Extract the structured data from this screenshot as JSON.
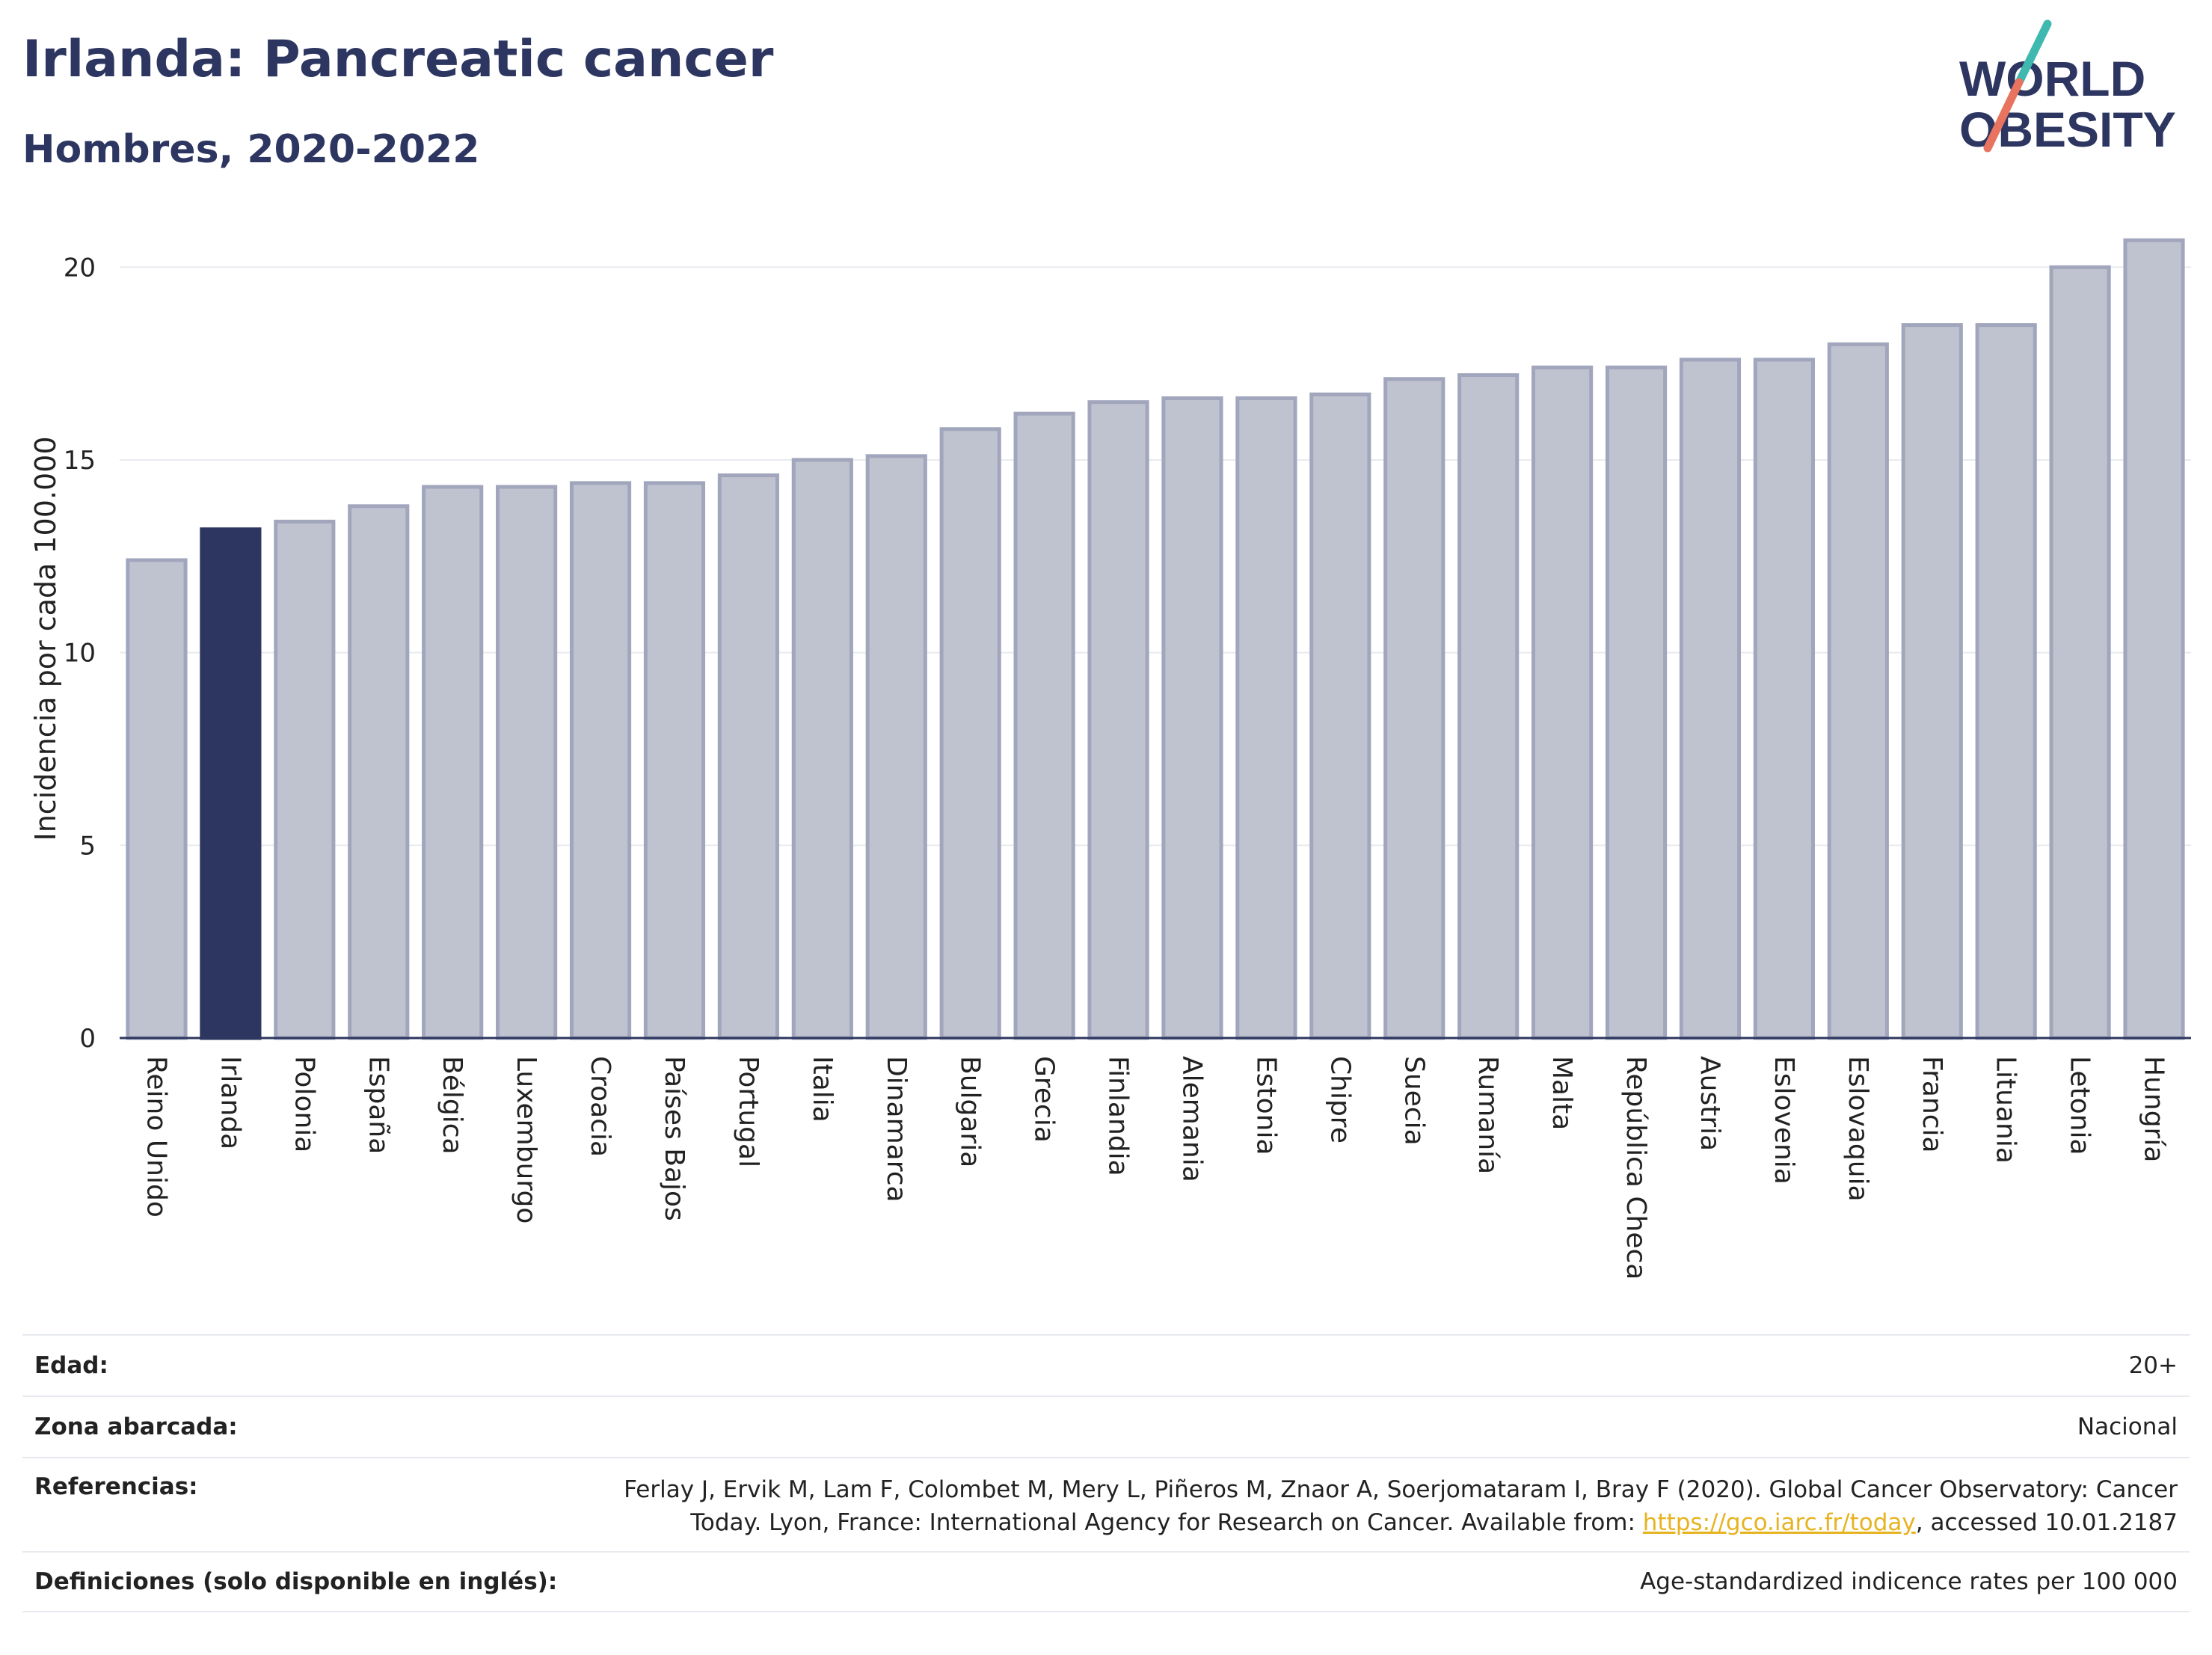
{
  "header": {
    "title": "Irlanda: Pancreatic cancer",
    "subtitle": "Hombres, 2020-2022"
  },
  "logo": {
    "line1": "WORLD",
    "line2": "OBESITY",
    "colors": {
      "text": "#2d3660",
      "slash_teal": "#3fb8b0",
      "slash_red": "#e8745f"
    }
  },
  "chart_data": {
    "type": "bar",
    "ylabel": "Incidencia por cada 100.000",
    "ylim": [
      0,
      21.5
    ],
    "yticks": [
      0,
      5,
      10,
      15,
      20
    ],
    "grid": true,
    "highlight": "Irlanda",
    "colors": {
      "bar": "#bfc3d0",
      "bar_stroke": "#a1a6bc",
      "highlight": "#2d3660"
    },
    "categories": [
      "Reino Unido",
      "Irlanda",
      "Polonia",
      "España",
      "Bélgica",
      "Luxemburgo",
      "Croacia",
      "Países Bajos",
      "Portugal",
      "Italia",
      "Dinamarca",
      "Bulgaria",
      "Grecia",
      "Finlandia",
      "Alemania",
      "Estonia",
      "Chipre",
      "Suecia",
      "Rumanía",
      "Malta",
      "República Checa",
      "Austria",
      "Eslovenia",
      "Eslovaquia",
      "Francia",
      "Lituania",
      "Letonia",
      "Hungría"
    ],
    "values": [
      12.4,
      13.2,
      13.4,
      13.8,
      14.3,
      14.3,
      14.4,
      14.4,
      14.6,
      15.0,
      15.1,
      15.8,
      16.2,
      16.5,
      16.6,
      16.6,
      16.7,
      17.1,
      17.2,
      17.4,
      17.4,
      17.6,
      17.6,
      18.0,
      18.5,
      18.5,
      20.0,
      20.7
    ]
  },
  "meta": {
    "edad_label": "Edad:",
    "edad_value": "20+",
    "zona_label": "Zona abarcada:",
    "zona_value": "Nacional",
    "ref_label": "Referencias:",
    "ref_line1": "Ferlay J, Ervik M, Lam F, Colombet M, Mery L, Piñeros M, Znaor A, Soerjomataram I, Bray F (2020). Global Cancer Observatory: Cancer",
    "ref_line2_pre": "Today. Lyon, France: International Agency for Research on Cancer. Available from: ",
    "ref_link": "https://gco.iarc.fr/today",
    "ref_line2_post": ", accessed 10.01.2187",
    "def_label": "Definiciones (solo disponible en inglés):",
    "def_value": "Age-standardized indicence rates per 100 000"
  }
}
